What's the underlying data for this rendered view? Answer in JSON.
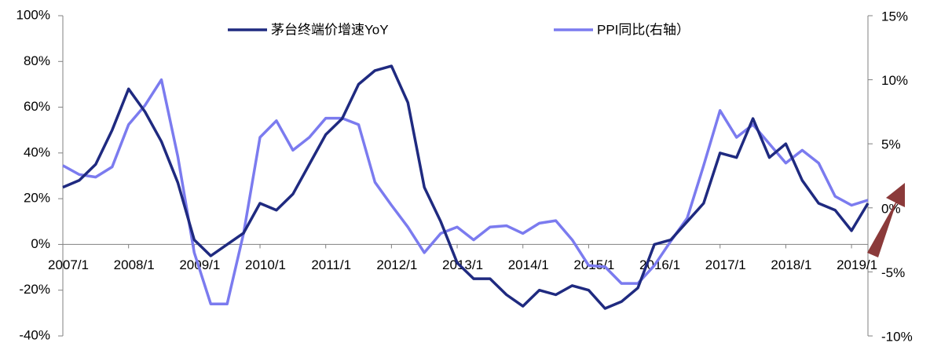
{
  "chart_data": {
    "type": "line",
    "categories": [
      "2007/1",
      null,
      null,
      null,
      "2008/1",
      null,
      null,
      null,
      "2009/1",
      null,
      null,
      null,
      "2010/1",
      null,
      null,
      null,
      "2011/1",
      null,
      null,
      null,
      "2012/1",
      null,
      null,
      null,
      "2013/1",
      null,
      null,
      null,
      "2014/1",
      null,
      null,
      null,
      "2015/1",
      null,
      null,
      null,
      "2016/1",
      null,
      null,
      null,
      "2017/1",
      null,
      null,
      null,
      "2018/1",
      null,
      null,
      null,
      "2019/1",
      null
    ],
    "series": [
      {
        "name": "茅台终端价增速YoY",
        "color": "#1f2a80",
        "axis": "y",
        "values": [
          25,
          28,
          35,
          50,
          68,
          58,
          45,
          27,
          2,
          -5,
          0,
          5,
          18,
          15,
          22,
          35,
          48,
          55,
          70,
          76,
          78,
          62,
          25,
          10,
          -8,
          -15,
          -15,
          -22,
          -27,
          -20,
          -22,
          -18,
          -20,
          -28,
          -25,
          -19,
          0,
          2,
          10,
          18,
          40,
          38,
          55,
          38,
          44,
          28,
          18,
          15,
          6,
          18
        ]
      },
      {
        "name": "PPI同比(右轴）",
        "color": "#7b7bef",
        "axis": "y2",
        "values": [
          3.3,
          2.6,
          2.4,
          3.2,
          6.5,
          8.0,
          10.0,
          4.0,
          -3.5,
          -7.5,
          -7.5,
          -2,
          5.5,
          6.8,
          4.5,
          5.5,
          7,
          7.0,
          6.5,
          2,
          0.2,
          -1.5,
          -3.5,
          -2,
          -1.5,
          -2.5,
          -1.5,
          -1.4,
          -2.0,
          -1.2,
          -1.0,
          -2.5,
          -4.5,
          -4.6,
          -5.9,
          -5.9,
          -4.5,
          -2.6,
          -0.8,
          3.3,
          7.6,
          5.5,
          6.5,
          5.0,
          3.5,
          4.5,
          3.5,
          0.9,
          0.2,
          0.6
        ]
      }
    ],
    "ylim": [
      -40,
      100
    ],
    "yticks": [
      {
        "value": -40,
        "label": "-40%"
      },
      {
        "value": -20,
        "label": "-20%"
      },
      {
        "value": 0,
        "label": "0%"
      },
      {
        "value": 20,
        "label": "20%"
      },
      {
        "value": 40,
        "label": "40%"
      },
      {
        "value": 60,
        "label": "60%"
      },
      {
        "value": 80,
        "label": "80%"
      },
      {
        "value": 100,
        "label": "100%"
      }
    ],
    "y2lim": [
      -10,
      15
    ],
    "y2ticks": [
      {
        "value": -10,
        "label": "-10%"
      },
      {
        "value": -5,
        "label": "-5%"
      },
      {
        "value": 0,
        "label": "0%"
      },
      {
        "value": 5,
        "label": "5%"
      },
      {
        "value": 10,
        "label": "10%"
      },
      {
        "value": 15,
        "label": "15%"
      }
    ],
    "legend": "top"
  }
}
